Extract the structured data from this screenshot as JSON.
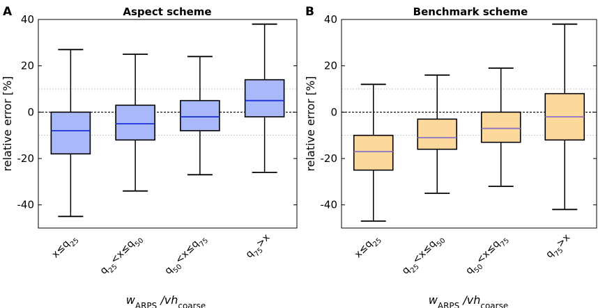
{
  "chart_data": [
    {
      "type": "box",
      "panel_letter": "A",
      "title": "Aspect scheme",
      "ylabel": "relative error [%]",
      "xlabel": {
        "main": "w",
        "sub1": "ARPS",
        "mid": " /vh",
        "sub2": "coarse"
      },
      "ylim": [
        -50,
        40
      ],
      "yticks": [
        40,
        20,
        0,
        -20,
        -40
      ],
      "ytick_labels": [
        "40",
        "20",
        "0",
        "-20",
        "-40"
      ],
      "reference_lines": {
        "zero": 0,
        "dotted": [
          10,
          -10
        ]
      },
      "categories": [
        {
          "base": "x≤q",
          "sub": "25",
          "rest": ""
        },
        {
          "base": "q",
          "sub": "25",
          "mid": "<x≤q",
          "sub2": "50"
        },
        {
          "base": "q",
          "sub": "50",
          "mid": "<x≤q",
          "sub2": "75"
        },
        {
          "base": "q",
          "sub": "75",
          "mid": ">x",
          "sub2": ""
        }
      ],
      "boxes": [
        {
          "whisker_low": -45,
          "q1": -18,
          "median": -8,
          "q3": 0,
          "whisker_high": 27
        },
        {
          "whisker_low": -34,
          "q1": -12,
          "median": -5,
          "q3": 3,
          "whisker_high": 25
        },
        {
          "whisker_low": -27,
          "q1": -8,
          "median": -2,
          "q3": 5,
          "whisker_high": 24
        },
        {
          "whisker_low": -26,
          "q1": -2,
          "median": 5,
          "q3": 14,
          "whisker_high": 38
        }
      ],
      "box_fill": "#a8b8f8",
      "median_color": "#1a2fd8"
    },
    {
      "type": "box",
      "panel_letter": "B",
      "title": "Benchmark scheme",
      "ylabel": "relative error [%]",
      "xlabel": {
        "main": "w",
        "sub1": "ARPS",
        "mid": " /vh",
        "sub2": "coarse"
      },
      "ylim": [
        -50,
        40
      ],
      "yticks": [
        40,
        20,
        0,
        -20,
        -40
      ],
      "ytick_labels": [
        "40",
        "20",
        "0",
        "-20",
        "-40"
      ],
      "reference_lines": {
        "zero": 0,
        "dotted": [
          10,
          -10
        ]
      },
      "categories": [
        {
          "base": "x≤q",
          "sub": "25",
          "rest": ""
        },
        {
          "base": "q",
          "sub": "25",
          "mid": "<x≤q",
          "sub2": "50"
        },
        {
          "base": "q",
          "sub": "50",
          "mid": "<x≤q",
          "sub2": "75"
        },
        {
          "base": "q",
          "sub": "75",
          "mid": ">x",
          "sub2": ""
        }
      ],
      "boxes": [
        {
          "whisker_low": -47,
          "q1": -25,
          "median": -17,
          "q3": -10,
          "whisker_high": 12
        },
        {
          "whisker_low": -35,
          "q1": -16,
          "median": -11,
          "q3": -3,
          "whisker_high": 16
        },
        {
          "whisker_low": -32,
          "q1": -13,
          "median": -7,
          "q3": 0,
          "whisker_high": 19
        },
        {
          "whisker_low": -42,
          "q1": -12,
          "median": -2,
          "q3": 8,
          "whisker_high": 38
        }
      ],
      "box_fill": "#fcd99a",
      "median_color": "#8a72c8"
    }
  ]
}
